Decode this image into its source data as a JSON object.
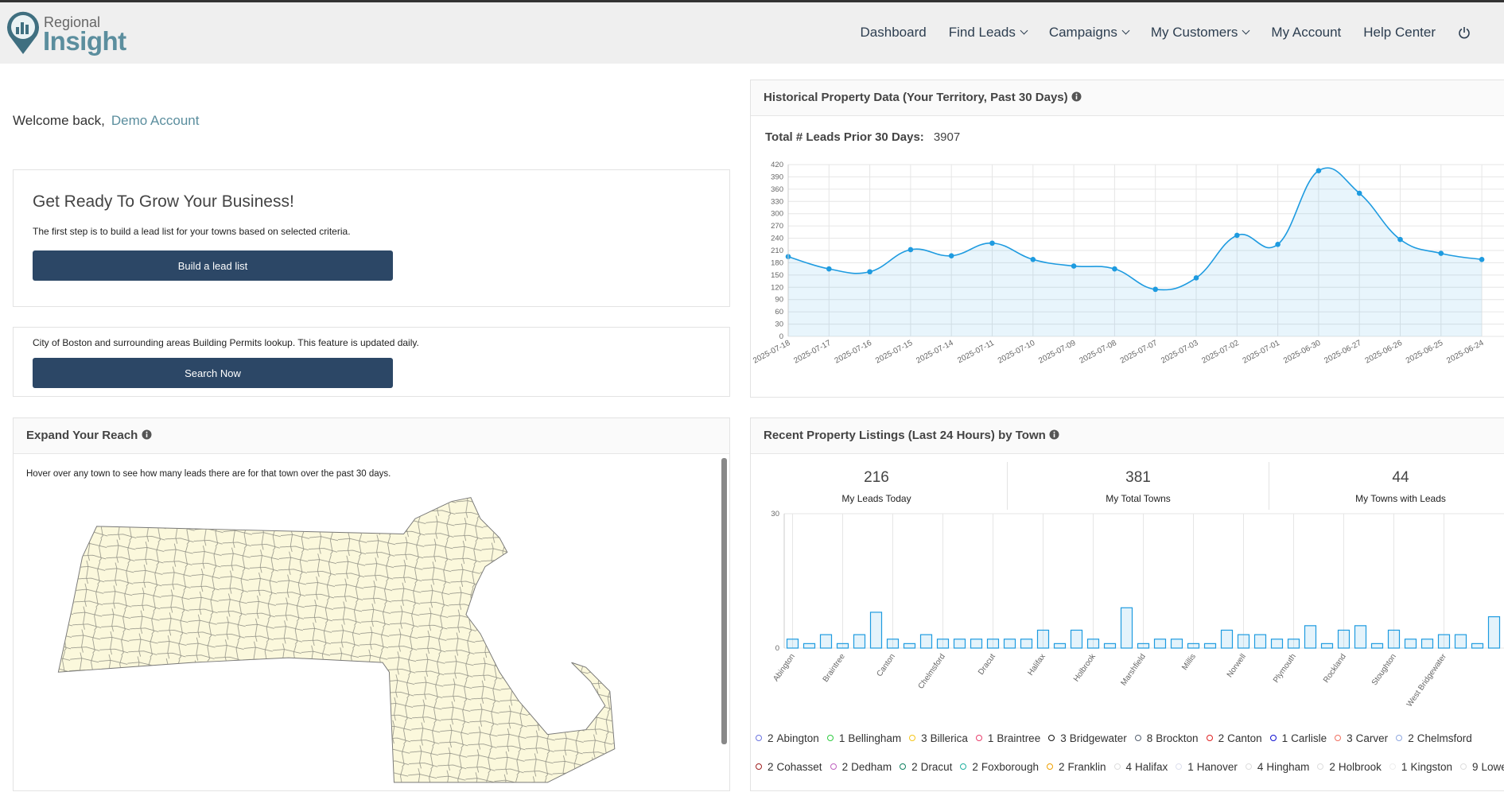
{
  "header": {
    "logo_top": "Regional",
    "logo_bottom": "Insight",
    "nav": [
      "Dashboard",
      "Find Leads",
      "Campaigns",
      "My Customers",
      "My Account",
      "Help Center"
    ]
  },
  "welcome": {
    "greeting": "Welcome back,",
    "name": "Demo Account"
  },
  "grow_card": {
    "title": "Get Ready To Grow Your Business!",
    "text": "The first step is to build a lead list for your towns based on selected criteria.",
    "button": "Build a lead list"
  },
  "permits_card": {
    "text": "City of Boston and surrounding areas Building Permits lookup. This feature is updated daily.",
    "button": "Search Now"
  },
  "reach_card": {
    "title": "Expand Your Reach",
    "text": "Hover over any town to see how many leads there are for that town over the past 30 days."
  },
  "history_card": {
    "title": "Historical Property Data (Your Territory, Past 30 Days)",
    "total_label": "Total # Leads Prior 30 Days:",
    "total_value": 3907,
    "chart": {
      "type": "line",
      "color": "#1e9be0",
      "categories": [
        "2025-07-18",
        "2025-07-17",
        "2025-07-16",
        "2025-07-15",
        "2025-07-14",
        "2025-07-11",
        "2025-07-10",
        "2025-07-09",
        "2025-07-08",
        "2025-07-07",
        "2025-07-03",
        "2025-07-02",
        "2025-07-01",
        "2025-06-30",
        "2025-06-27",
        "2025-06-26",
        "2025-06-25",
        "2025-06-24"
      ],
      "values": [
        195,
        165,
        158,
        212,
        197,
        228,
        188,
        172,
        165,
        115,
        143,
        247,
        225,
        405,
        350,
        237,
        203,
        188
      ],
      "ylim": [
        0,
        420
      ],
      "yticks": [
        0,
        30,
        60,
        90,
        120,
        150,
        180,
        210,
        240,
        270,
        300,
        330,
        360,
        390,
        420
      ],
      "grid": true
    }
  },
  "listings_card": {
    "title": "Recent Property Listings (Last 24 Hours) by Town",
    "stats": [
      {
        "value": 216,
        "label": "My Leads Today"
      },
      {
        "value": 381,
        "label": "My Total Towns"
      },
      {
        "value": 44,
        "label": "My Towns with Leads"
      }
    ],
    "chart": {
      "type": "bar",
      "color": "#1e9be0",
      "categories": [
        "Abington",
        null,
        null,
        "Braintree",
        null,
        null,
        "Canton",
        null,
        null,
        "Chelmsford",
        null,
        null,
        "Dracut",
        null,
        null,
        "Halifax",
        null,
        null,
        "Holbrook",
        null,
        null,
        "Marshfield",
        null,
        null,
        "Millis",
        null,
        null,
        "Norwell",
        null,
        null,
        "Plymouth",
        null,
        null,
        "Rockland",
        null,
        null,
        "Stoughton",
        null,
        null,
        "West Bridgewater",
        null,
        null,
        null
      ],
      "values": [
        2,
        1,
        3,
        1,
        3,
        8,
        2,
        1,
        3,
        2,
        2,
        2,
        2,
        2,
        2,
        4,
        1,
        4,
        2,
        1,
        9,
        1,
        2,
        2,
        1,
        1,
        4,
        3,
        3,
        2,
        2,
        5,
        1,
        4,
        5,
        1,
        4,
        2,
        2,
        3,
        3,
        1,
        7
      ],
      "ylim": [
        0,
        30
      ],
      "yticks": [
        0,
        30
      ],
      "grid": true
    },
    "legend": [
      {
        "value": 2,
        "name": "Abington",
        "color": "#6b74e0"
      },
      {
        "value": 1,
        "name": "Bellingham",
        "color": "#2ecc40"
      },
      {
        "value": 3,
        "name": "Billerica",
        "color": "#f5c518"
      },
      {
        "value": 1,
        "name": "Braintree",
        "color": "#e83e6c"
      },
      {
        "value": 3,
        "name": "Bridgewater",
        "color": "#111111"
      },
      {
        "value": 8,
        "name": "Brockton",
        "color": "#556070"
      },
      {
        "value": 2,
        "name": "Canton",
        "color": "#e02020"
      },
      {
        "value": 1,
        "name": "Carlisle",
        "color": "#1010d0"
      },
      {
        "value": 3,
        "name": "Carver",
        "color": "#f07060"
      },
      {
        "value": 2,
        "name": "Chelmsford",
        "color": "#8fa8e0"
      },
      {
        "value": 2,
        "name": "Cohasset",
        "color": "#a02020"
      },
      {
        "value": 2,
        "name": "Dedham",
        "color": "#c060c0"
      },
      {
        "value": 2,
        "name": "Dracut",
        "color": "#108060"
      },
      {
        "value": 2,
        "name": "Foxborough",
        "color": "#20b0a0"
      },
      {
        "value": 2,
        "name": "Franklin",
        "color": "#f0a000"
      },
      {
        "value": 4,
        "name": "Halifax",
        "color": "#dddddd"
      },
      {
        "value": 1,
        "name": "Hanover",
        "color": "#dde0ee"
      },
      {
        "value": 4,
        "name": "Hingham",
        "color": "#dddddd"
      },
      {
        "value": 2,
        "name": "Holbrook",
        "color": "#dddddd"
      },
      {
        "value": 1,
        "name": "Kingston",
        "color": "#eeeeee"
      },
      {
        "value": 9,
        "name": "Lowell",
        "color": "#dddddd"
      }
    ]
  }
}
